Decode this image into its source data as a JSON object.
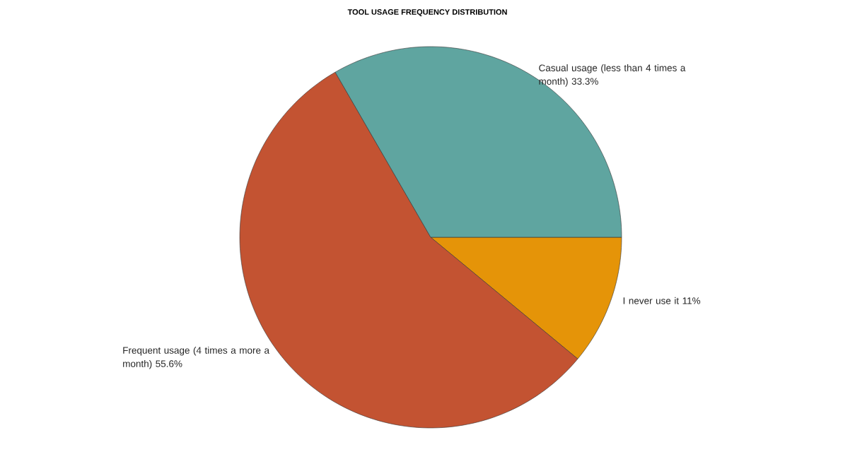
{
  "chart_data": {
    "type": "pie",
    "title": "TOOL USAGE FREQUENCY DISTRIBUTION",
    "categories": [
      "I never use it",
      "Frequent usage (4 times a more a month)",
      "Casual usage (less than 4 times a month)"
    ],
    "values": [
      11,
      55.6,
      33.3
    ],
    "value_labels": [
      "11%",
      "55.6%",
      "33.3%"
    ],
    "colors": [
      "#e59408",
      "#c35332",
      "#5fa5a0"
    ]
  }
}
